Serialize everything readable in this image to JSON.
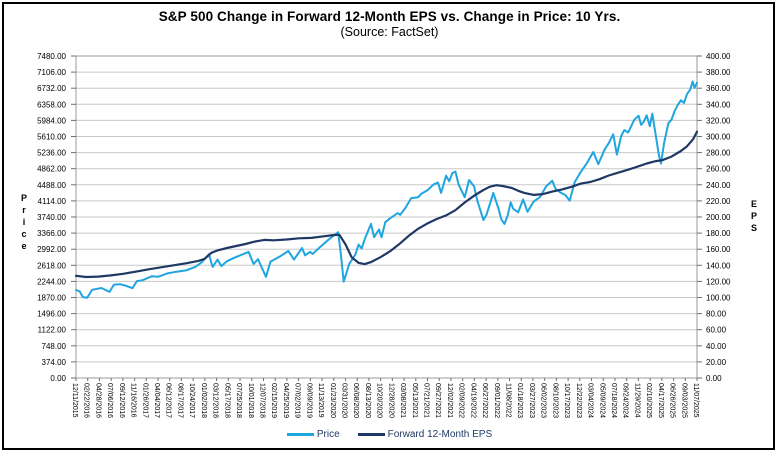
{
  "chart_data": {
    "type": "line",
    "title": "S&P 500 Change in Forward 12-Month EPS vs. Change in Price: 10 Yrs.",
    "subtitle": "(Source: FactSet)",
    "grid": "horizontal",
    "legend_position": "bottom",
    "left_axis": {
      "label": "Price",
      "min": 0,
      "max": 7480,
      "step": 374
    },
    "right_axis": {
      "label": "EPS",
      "min": 0,
      "max": 400,
      "step": 20
    },
    "x_labels": [
      "12/11/2015",
      "02/22/2016",
      "04/28/2016",
      "07/06/2016",
      "09/12/2016",
      "11/16/2016",
      "01/26/2017",
      "04/04/2017",
      "06/12/2017",
      "08/17/2017",
      "10/24/2017",
      "01/02/2018",
      "03/12/2018",
      "05/17/2018",
      "07/25/2018",
      "10/01/2018",
      "12/07/2018",
      "02/15/2019",
      "04/25/2019",
      "07/02/2019",
      "09/09/2019",
      "11/13/2019",
      "01/23/2020",
      "03/31/2020",
      "06/08/2020",
      "08/13/2020",
      "10/20/2020",
      "12/28/2020",
      "03/08/2021",
      "05/13/2021",
      "07/21/2021",
      "09/27/2021",
      "12/02/2021",
      "02/09/2022",
      "04/19/2022",
      "06/27/2022",
      "09/01/2022",
      "11/08/2022",
      "01/18/2023",
      "03/27/2023",
      "06/02/2023",
      "08/10/2023",
      "10/17/2023",
      "12/22/2023",
      "03/04/2024",
      "05/09/2024",
      "07/18/2024",
      "09/24/2024",
      "11/29/2024",
      "02/10/2025",
      "04/17/2025",
      "06/26/2025",
      "09/03/2025",
      "11/07/2025"
    ],
    "series": [
      {
        "name": "Price",
        "axis": "left",
        "color": "#1FA5E0",
        "width": 2,
        "points": [
          [
            0,
            2045
          ],
          [
            0.6,
            2012
          ],
          [
            1.1,
            1880
          ],
          [
            1.8,
            1865
          ],
          [
            2.6,
            2050
          ],
          [
            4.1,
            2090
          ],
          [
            5.4,
            2001
          ],
          [
            6.1,
            2170
          ],
          [
            7.1,
            2180
          ],
          [
            8.1,
            2140
          ],
          [
            9.1,
            2085
          ],
          [
            9.8,
            2250
          ],
          [
            10.7,
            2270
          ],
          [
            12.2,
            2365
          ],
          [
            13.2,
            2350
          ],
          [
            14.7,
            2430
          ],
          [
            16.2,
            2470
          ],
          [
            17.7,
            2500
          ],
          [
            19.2,
            2580
          ],
          [
            20.2,
            2680
          ],
          [
            21.4,
            2873
          ],
          [
            22,
            2581
          ],
          [
            22.8,
            2750
          ],
          [
            23.4,
            2600
          ],
          [
            24.3,
            2710
          ],
          [
            25.3,
            2780
          ],
          [
            26.3,
            2840
          ],
          [
            27.8,
            2930
          ],
          [
            28.6,
            2650
          ],
          [
            29.3,
            2760
          ],
          [
            29.8,
            2600
          ],
          [
            30.6,
            2351
          ],
          [
            31.3,
            2700
          ],
          [
            32.9,
            2830
          ],
          [
            34.2,
            2950
          ],
          [
            35.1,
            2750
          ],
          [
            36.4,
            3020
          ],
          [
            36.9,
            2850
          ],
          [
            37.7,
            2930
          ],
          [
            38.1,
            2880
          ],
          [
            38.9,
            2990
          ],
          [
            39.9,
            3120
          ],
          [
            40.9,
            3240
          ],
          [
            42.2,
            3386
          ],
          [
            42.6,
            2950
          ],
          [
            43.1,
            2237
          ],
          [
            44,
            2650
          ],
          [
            45,
            2870
          ],
          [
            45.5,
            3100
          ],
          [
            46,
            3010
          ],
          [
            46.5,
            3230
          ],
          [
            47.5,
            3580
          ],
          [
            48,
            3270
          ],
          [
            48.8,
            3450
          ],
          [
            49.2,
            3270
          ],
          [
            49.8,
            3620
          ],
          [
            50.5,
            3700
          ],
          [
            51,
            3750
          ],
          [
            51.8,
            3830
          ],
          [
            52.2,
            3790
          ],
          [
            53,
            3940
          ],
          [
            54,
            4180
          ],
          [
            55.1,
            4200
          ],
          [
            55.6,
            4280
          ],
          [
            56.6,
            4360
          ],
          [
            57.6,
            4500
          ],
          [
            58.3,
            4540
          ],
          [
            58.8,
            4300
          ],
          [
            59.6,
            4700
          ],
          [
            60.1,
            4570
          ],
          [
            60.6,
            4760
          ],
          [
            61.1,
            4797
          ],
          [
            61.6,
            4500
          ],
          [
            62.1,
            4350
          ],
          [
            62.6,
            4200
          ],
          [
            63.3,
            4600
          ],
          [
            64.1,
            4450
          ],
          [
            64.6,
            4130
          ],
          [
            65.1,
            3900
          ],
          [
            65.6,
            3670
          ],
          [
            66.1,
            3790
          ],
          [
            67.2,
            4300
          ],
          [
            68,
            3950
          ],
          [
            68.5,
            3680
          ],
          [
            69,
            3580
          ],
          [
            69.5,
            3770
          ],
          [
            70,
            4080
          ],
          [
            70.4,
            3930
          ],
          [
            71.2,
            3850
          ],
          [
            72,
            4150
          ],
          [
            72.7,
            3860
          ],
          [
            73.7,
            4100
          ],
          [
            74.7,
            4200
          ],
          [
            75.7,
            4450
          ],
          [
            76.7,
            4580
          ],
          [
            77.2,
            4400
          ],
          [
            78.1,
            4300
          ],
          [
            78.8,
            4250
          ],
          [
            79.5,
            4120
          ],
          [
            80.3,
            4550
          ],
          [
            81.2,
            4770
          ],
          [
            82.3,
            5000
          ],
          [
            83.3,
            5250
          ],
          [
            84.1,
            4970
          ],
          [
            85.1,
            5300
          ],
          [
            85.8,
            5460
          ],
          [
            86.5,
            5660
          ],
          [
            87.1,
            5190
          ],
          [
            87.8,
            5620
          ],
          [
            88.3,
            5760
          ],
          [
            88.9,
            5700
          ],
          [
            89.4,
            5850
          ],
          [
            89.9,
            6000
          ],
          [
            90.6,
            6090
          ],
          [
            91,
            5880
          ],
          [
            91.4,
            5950
          ],
          [
            91.9,
            6100
          ],
          [
            92.4,
            5850
          ],
          [
            92.8,
            6140
          ],
          [
            93.4,
            5600
          ],
          [
            93.9,
            5150
          ],
          [
            94.2,
            4983
          ],
          [
            94.7,
            5460
          ],
          [
            95.4,
            5920
          ],
          [
            95.9,
            6000
          ],
          [
            96.4,
            6200
          ],
          [
            96.9,
            6340
          ],
          [
            97.4,
            6450
          ],
          [
            97.9,
            6390
          ],
          [
            98.4,
            6600
          ],
          [
            98.9,
            6700
          ],
          [
            99.3,
            6890
          ],
          [
            99.6,
            6740
          ],
          [
            100,
            6860
          ]
        ]
      },
      {
        "name": "Forward 12-Month EPS",
        "axis": "right",
        "color": "#1F3864",
        "width": 2.2,
        "points": [
          [
            0,
            127
          ],
          [
            1.6,
            125.5
          ],
          [
            3.6,
            126
          ],
          [
            5.6,
            127.5
          ],
          [
            7.6,
            129.5
          ],
          [
            9.6,
            132
          ],
          [
            11.7,
            135
          ],
          [
            13.7,
            137.5
          ],
          [
            15.7,
            140
          ],
          [
            17.7,
            142.5
          ],
          [
            19.7,
            145.5
          ],
          [
            20.7,
            148
          ],
          [
            21.8,
            155.5
          ],
          [
            22.8,
            158.5
          ],
          [
            24.3,
            161.5
          ],
          [
            25.8,
            164
          ],
          [
            27.3,
            166.5
          ],
          [
            28.8,
            169.5
          ],
          [
            30.3,
            171.5
          ],
          [
            31.8,
            171
          ],
          [
            33.9,
            172
          ],
          [
            35.9,
            173.5
          ],
          [
            37.9,
            174
          ],
          [
            39.9,
            176
          ],
          [
            41.4,
            177.5
          ],
          [
            42.4,
            178
          ],
          [
            43.4,
            166
          ],
          [
            44.4,
            150
          ],
          [
            45.5,
            143
          ],
          [
            46.5,
            141.5
          ],
          [
            47.5,
            144
          ],
          [
            49,
            150
          ],
          [
            50.5,
            157
          ],
          [
            52,
            166
          ],
          [
            53.5,
            176
          ],
          [
            55,
            185
          ],
          [
            56.6,
            192
          ],
          [
            58.1,
            197.5
          ],
          [
            59.6,
            202
          ],
          [
            61.1,
            208.5
          ],
          [
            62.6,
            218
          ],
          [
            64.1,
            226.5
          ],
          [
            65.6,
            233.5
          ],
          [
            66.6,
            237.5
          ],
          [
            67.7,
            239.5
          ],
          [
            68.7,
            238.5
          ],
          [
            70.2,
            236
          ],
          [
            71.2,
            232.5
          ],
          [
            72.2,
            230
          ],
          [
            73.7,
            227.5
          ],
          [
            75.2,
            228.5
          ],
          [
            76.7,
            231.5
          ],
          [
            78.2,
            234
          ],
          [
            79.8,
            237.5
          ],
          [
            81.3,
            241.5
          ],
          [
            82.8,
            243.5
          ],
          [
            84.3,
            247
          ],
          [
            85.8,
            251.5
          ],
          [
            87.3,
            255
          ],
          [
            88.8,
            258.5
          ],
          [
            90.4,
            262.5
          ],
          [
            91.9,
            266.5
          ],
          [
            93.4,
            269.5
          ],
          [
            94.4,
            270.5
          ],
          [
            95.9,
            275
          ],
          [
            97.4,
            282
          ],
          [
            98.4,
            288
          ],
          [
            99.4,
            297
          ],
          [
            100,
            306
          ]
        ]
      }
    ],
    "colors": {
      "gridline": "#C8C8C8",
      "plot_border": "#9B9B9B",
      "tick": "#6E6E6E",
      "legend_text": "#1F3864"
    }
  }
}
